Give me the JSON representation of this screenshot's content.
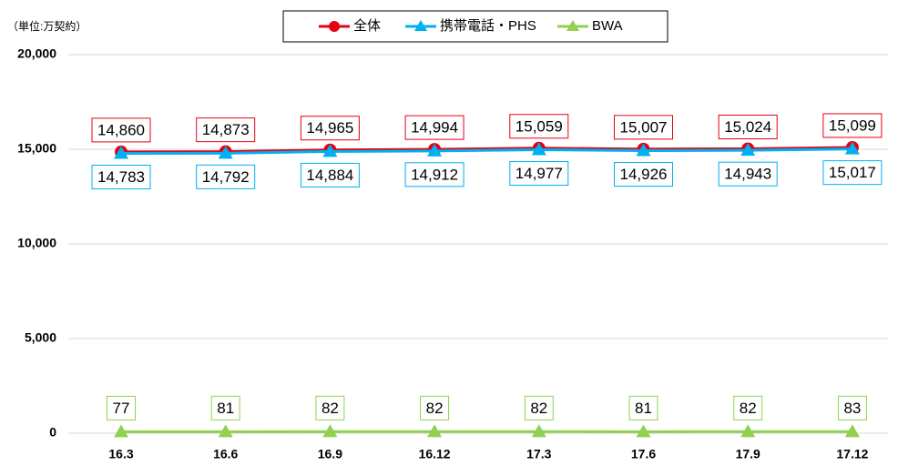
{
  "chart_data": {
    "type": "line",
    "unit_label": "（単位:万契約）",
    "categories": [
      "16.3",
      "16.6",
      "16.9",
      "16.12",
      "17.3",
      "17.6",
      "17.9",
      "17.12"
    ],
    "series": [
      {
        "name": "全体",
        "color": "#e60012",
        "marker": "circle",
        "values": [
          14860,
          14873,
          14965,
          14994,
          15059,
          15007,
          15024,
          15099
        ],
        "value_labels": [
          "14,860",
          "14,873",
          "14,965",
          "14,994",
          "15,059",
          "15,007",
          "15,024",
          "15,099"
        ]
      },
      {
        "name": "携帯電話・PHS",
        "color": "#00b0f0",
        "marker": "triangle",
        "values": [
          14783,
          14792,
          14884,
          14912,
          14977,
          14926,
          14943,
          15017
        ],
        "value_labels": [
          "14,783",
          "14,792",
          "14,884",
          "14,912",
          "14,977",
          "14,926",
          "14,943",
          "15,017"
        ]
      },
      {
        "name": "BWA",
        "color": "#92d050",
        "marker": "triangle",
        "values": [
          77,
          81,
          82,
          82,
          82,
          81,
          82,
          83
        ]
      }
    ],
    "ylim": [
      0,
      20000
    ],
    "yticks": [
      {
        "value": 0,
        "label": "0"
      },
      {
        "value": 5000,
        "label": "5,000"
      },
      {
        "value": 10000,
        "label": "10,000"
      },
      {
        "value": 15000,
        "label": "15,000"
      },
      {
        "value": 20000,
        "label": "20,000"
      }
    ],
    "grid": true,
    "legend": "top"
  }
}
